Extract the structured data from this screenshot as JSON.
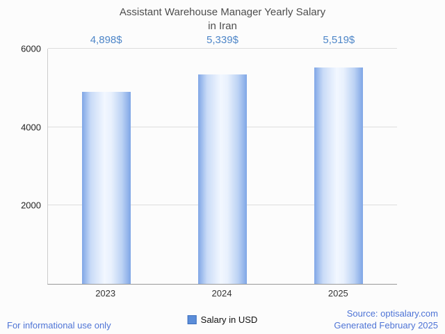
{
  "header": {
    "title_line1": "Assistant Warehouse Manager Yearly Salary",
    "title_line2": "in Iran"
  },
  "chart_data": {
    "type": "bar",
    "title": "Assistant Warehouse Manager Yearly Salary in Iran",
    "categories": [
      "2023",
      "2024",
      "2025"
    ],
    "values": [
      4898,
      5339,
      5519
    ],
    "value_labels": [
      "4,898$",
      "5,339$",
      "5,519$"
    ],
    "series_name": "Salary in USD",
    "ylim": [
      0,
      6000
    ],
    "yticks": [
      2000,
      4000,
      6000
    ],
    "grid": true,
    "legend_position": "bottom-center",
    "bar_style": "vertical blue cylinder gradient"
  },
  "legend": {
    "label": "Salary in USD",
    "swatch_color": "#5b8dd9"
  },
  "footer": {
    "disclaimer": "For informational use only",
    "source": "Source: optisalary.com",
    "generated": "Generated February 2025"
  },
  "colors": {
    "value_label": "#4e86c8",
    "link_text": "#4e74d6",
    "bar_edge": "#7fa6e6",
    "bar_mid": "#f2f7ff",
    "gridline": "#dddddd",
    "axis": "#999999",
    "title_text": "#4d4d4d"
  }
}
